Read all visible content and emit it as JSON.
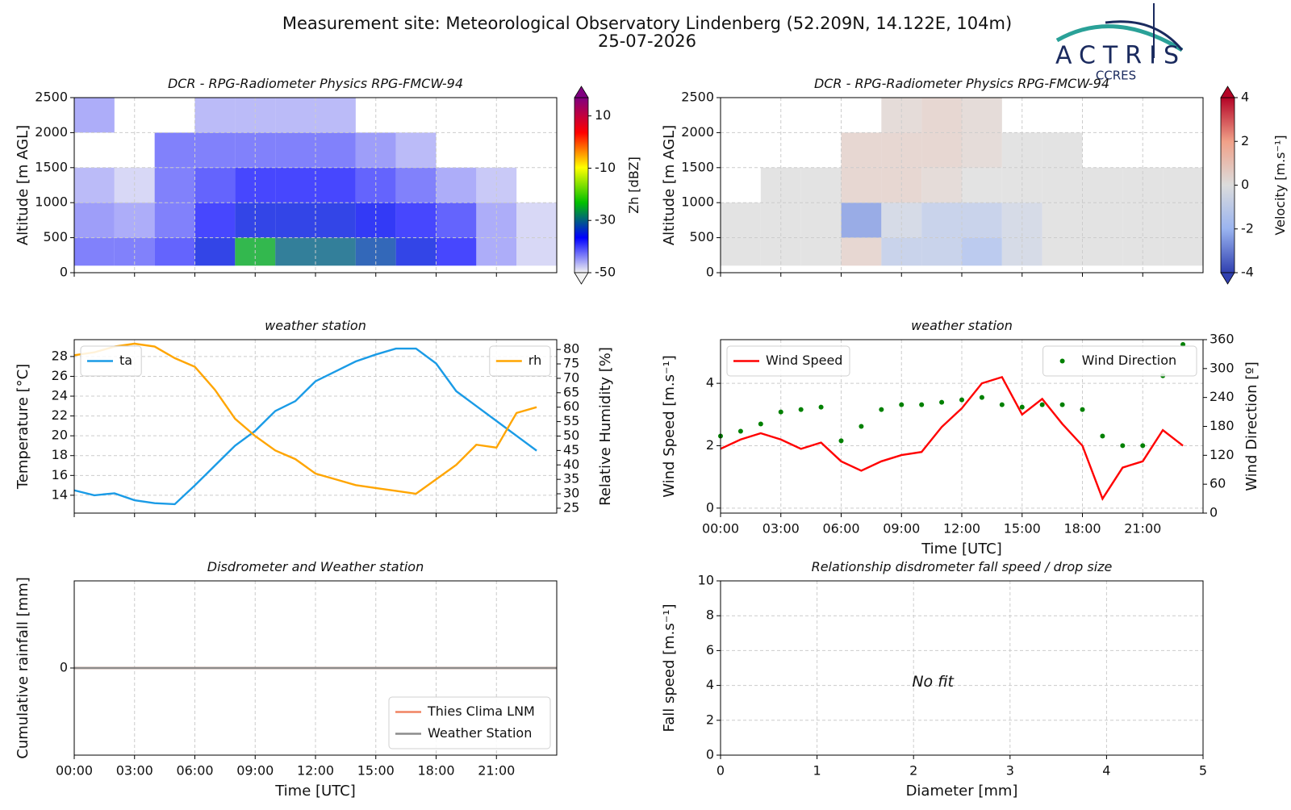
{
  "header": {
    "title": "Measurement site: Meteorological Observatory Lindenberg (52.209N, 14.122E, 104m)",
    "subtitle": "25-07-2026"
  },
  "logo": {
    "name": "ACTRIS",
    "subname": "CCRES"
  },
  "chart_data": [
    {
      "type": "heatmap",
      "title": "DCR - RPG-Radiometer Physics RPG-FMCW-94",
      "ylabel": "Altitude [m AGL]",
      "xlim": [
        0,
        24
      ],
      "xticks": [
        0,
        3,
        6,
        9,
        12,
        15,
        18,
        21
      ],
      "xtick_labels": false,
      "ylim": [
        0,
        2500
      ],
      "yticks": [
        0,
        500,
        1000,
        1500,
        2000,
        2500
      ],
      "grid": true,
      "x_edges": [
        0,
        2,
        4,
        6,
        8,
        10,
        12,
        14,
        16,
        18,
        20,
        22,
        24
      ],
      "y_edges": [
        100,
        500,
        1000,
        1500,
        2000,
        2500
      ],
      "z": [
        [
          -42,
          -42,
          -40,
          -35,
          -25,
          -30,
          -30,
          -32,
          -35,
          -38,
          -45,
          -48
        ],
        [
          -44,
          -45,
          -42,
          -38,
          -35,
          -35,
          -35,
          -36,
          -38,
          -40,
          -45,
          -48
        ],
        [
          -46,
          -48,
          -42,
          -40,
          -38,
          -38,
          -38,
          -40,
          -42,
          -45,
          -47,
          null
        ],
        [
          null,
          null,
          -42,
          -42,
          -42,
          -42,
          -42,
          -44,
          -46,
          null,
          null,
          null
        ],
        [
          -45,
          null,
          null,
          -46,
          -46,
          -46,
          -46,
          null,
          null,
          null,
          null,
          null
        ]
      ],
      "zlim": [
        -50,
        17
      ],
      "zticks": [
        -50,
        -30,
        -10,
        10
      ],
      "zlabel": "Zh [dBZ]",
      "colormap": [
        "#f2f2f2",
        "#0000ff",
        "#00c000",
        "#ffff00",
        "#ff0000",
        "#800080"
      ]
    },
    {
      "type": "heatmap",
      "title": "DCR - RPG-Radiometer Physics RPG-FMCW-94",
      "ylabel": "Altitude [m AGL]",
      "xlim": [
        0,
        24
      ],
      "xticks": [
        0,
        3,
        6,
        9,
        12,
        15,
        18,
        21
      ],
      "xtick_labels": false,
      "ylim": [
        0,
        2500
      ],
      "yticks": [
        0,
        500,
        1000,
        1500,
        2000,
        2500
      ],
      "grid": true,
      "x_edges": [
        0,
        2,
        4,
        6,
        8,
        10,
        12,
        14,
        16,
        18,
        20,
        22,
        24
      ],
      "y_edges": [
        100,
        500,
        1000,
        1500,
        2000,
        2500
      ],
      "z": [
        [
          0,
          0,
          0,
          0.5,
          -1,
          -1,
          -1.5,
          -0.5,
          0,
          0,
          0,
          0
        ],
        [
          0,
          0,
          0,
          -2.5,
          -0.5,
          -1,
          -1,
          -0.5,
          0,
          0,
          0,
          0
        ],
        [
          null,
          0,
          0,
          0.5,
          0.5,
          0.3,
          0,
          0,
          0,
          0,
          0,
          0
        ],
        [
          null,
          null,
          null,
          0.5,
          0.5,
          0.5,
          0.3,
          0,
          0,
          null,
          null,
          null
        ],
        [
          null,
          null,
          null,
          null,
          0.3,
          0.5,
          0.3,
          null,
          null,
          null,
          null,
          null
        ]
      ],
      "zlim": [
        -4,
        4
      ],
      "zticks": [
        -4,
        -2,
        0,
        2,
        4
      ],
      "zlabel": "Velocity [m.s⁻¹]",
      "colormap": [
        "#3040b0",
        "#9ab4f0",
        "#dcdcdc",
        "#f0a088",
        "#b40426"
      ]
    },
    {
      "type": "line",
      "title": "weather station",
      "ylabel": "Temperature [°C]",
      "y2label": "Relative Humidity [%]",
      "x": [
        0,
        1,
        2,
        3,
        4,
        5,
        6,
        7,
        8,
        9,
        10,
        11,
        12,
        13,
        14,
        15,
        16,
        17,
        18,
        19,
        20,
        21,
        22,
        23
      ],
      "xlim": [
        0,
        24
      ],
      "xticks": [
        0,
        3,
        6,
        9,
        12,
        15,
        18,
        21
      ],
      "xtick_labels": false,
      "ylim": [
        12.2,
        29.7
      ],
      "yticks": [
        14,
        16,
        18,
        20,
        22,
        24,
        26,
        28
      ],
      "y2lim": [
        23.3,
        83.4
      ],
      "y2ticks": [
        25,
        30,
        35,
        40,
        45,
        50,
        55,
        60,
        65,
        70,
        75,
        80
      ],
      "grid": true,
      "series": [
        {
          "name": "ta",
          "color": "#1a9be6",
          "legend": "upper left",
          "values": [
            14.5,
            14,
            14.2,
            13.5,
            13.2,
            13.1,
            15,
            17,
            19,
            20.5,
            22.5,
            23.5,
            25.5,
            26.5,
            27.5,
            28.2,
            28.8,
            28.8,
            27.3,
            24.5,
            23,
            21.5,
            20,
            18.5
          ]
        },
        {
          "name": "rh",
          "color": "#ffa500",
          "axis": "y2",
          "legend": "upper right",
          "values": [
            78,
            79,
            81,
            82,
            81,
            77,
            74,
            66,
            56,
            50,
            45,
            42,
            37,
            35,
            33,
            32,
            31,
            30,
            35,
            40,
            47,
            46,
            58,
            60
          ]
        }
      ]
    },
    {
      "type": "line",
      "title": "weather station",
      "ylabel": "Wind Speed [m.s⁻¹]",
      "y2label": "Wind Direction [º]",
      "xlabel": "Time [UTC]",
      "x": [
        0,
        1,
        2,
        3,
        4,
        5,
        6,
        7,
        8,
        9,
        10,
        11,
        12,
        13,
        14,
        15,
        16,
        17,
        18,
        19,
        20,
        21,
        22,
        23
      ],
      "xlim": [
        0,
        24
      ],
      "xticks": [
        {
          "value": 0,
          "label": "00:00"
        },
        {
          "value": 3,
          "label": "03:00"
        },
        {
          "value": 6,
          "label": "06:00"
        },
        {
          "value": 9,
          "label": "09:00"
        },
        {
          "value": 12,
          "label": "12:00"
        },
        {
          "value": 15,
          "label": "15:00"
        },
        {
          "value": 18,
          "label": "18:00"
        },
        {
          "value": 21,
          "label": "21:00"
        }
      ],
      "ylim": [
        -0.16,
        5.4
      ],
      "yticks": [
        0,
        2,
        4
      ],
      "y2lim": [
        0,
        360
      ],
      "y2ticks": [
        0,
        60,
        120,
        180,
        240,
        300,
        360
      ],
      "grid": true,
      "series": [
        {
          "name": "Wind Speed",
          "color": "#ff0000",
          "legend": "upper left",
          "values": [
            1.9,
            2.2,
            2.4,
            2.2,
            1.9,
            2.1,
            1.5,
            1.2,
            1.5,
            1.7,
            1.8,
            2.6,
            3.2,
            4.0,
            4.2,
            3.0,
            3.5,
            2.7,
            2.0,
            0.3,
            1.3,
            1.5,
            2.5,
            2.0
          ]
        },
        {
          "name": "Wind Direction",
          "color": "#008000",
          "axis": "y2",
          "style": "dots",
          "legend": "upper right",
          "values": [
            160,
            170,
            185,
            210,
            215,
            220,
            150,
            180,
            215,
            225,
            225,
            230,
            235,
            240,
            225,
            220,
            225,
            225,
            215,
            160,
            140,
            140,
            285,
            350
          ]
        }
      ]
    },
    {
      "type": "line",
      "title": "Disdrometer and Weather station",
      "ylabel": "Cumulative rainfall [mm]",
      "xlabel": "Time [UTC]",
      "x": [
        0,
        24
      ],
      "xlim": [
        0,
        24
      ],
      "xticks": [
        {
          "value": 0,
          "label": "00:00"
        },
        {
          "value": 3,
          "label": "03:00"
        },
        {
          "value": 6,
          "label": "06:00"
        },
        {
          "value": 9,
          "label": "09:00"
        },
        {
          "value": 12,
          "label": "12:00"
        },
        {
          "value": 15,
          "label": "15:00"
        },
        {
          "value": 18,
          "label": "18:00"
        },
        {
          "value": 21,
          "label": "21:00"
        }
      ],
      "ylim": [
        -0.055,
        0.055
      ],
      "yticks": [
        0
      ],
      "grid": true,
      "series": [
        {
          "name": "Thies Clima LNM",
          "color": "#f08462",
          "legend": "lower right",
          "values": [
            0,
            0
          ]
        },
        {
          "name": "Weather Station",
          "color": "#8c8c8c",
          "legend": "lower right",
          "values": [
            0,
            0
          ]
        }
      ]
    },
    {
      "type": "scatter",
      "title": "Relationship disdrometer fall speed / drop size",
      "xlabel": "Diameter [mm]",
      "ylabel": "Fall speed [m.s⁻¹]",
      "x": [],
      "values": [],
      "xlim": [
        0,
        5
      ],
      "xticks": [
        0,
        1,
        2,
        3,
        4,
        5
      ],
      "ylim": [
        0,
        10
      ],
      "yticks": [
        0,
        2,
        4,
        6,
        8,
        10
      ],
      "grid": true,
      "annotation": "No fit"
    }
  ]
}
